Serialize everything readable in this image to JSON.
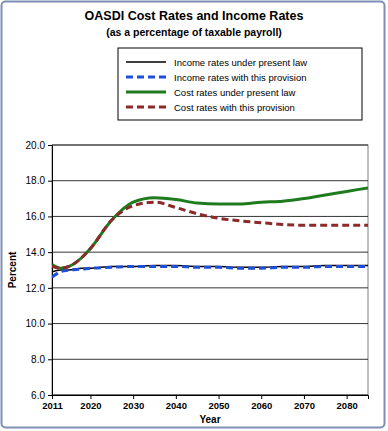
{
  "chart_data": {
    "type": "line",
    "title": "OASDI Cost Rates and Income Rates",
    "subtitle": "(as a percentage of taxable payroll)",
    "x_label": "Year",
    "y_label": "Percent",
    "x": [
      2011,
      2013,
      2015,
      2018,
      2020,
      2025,
      2030,
      2035,
      2040,
      2045,
      2050,
      2055,
      2060,
      2065,
      2070,
      2075,
      2080,
      2085
    ],
    "xlim": [
      2011,
      2085
    ],
    "xticks": [
      2011,
      2020,
      2030,
      2040,
      2050,
      2060,
      2070,
      2080
    ],
    "ylim": [
      6,
      20
    ],
    "yticks": [
      {
        "value": 6,
        "label": "6.0"
      },
      {
        "value": 8,
        "label": "8.0"
      },
      {
        "value": 10,
        "label": "10.0"
      },
      {
        "value": 12,
        "label": "12.0"
      },
      {
        "value": 14,
        "label": "14.0"
      },
      {
        "value": 16,
        "label": "16.0"
      },
      {
        "value": 18,
        "label": "18.0"
      },
      {
        "value": 20,
        "label": "20.0"
      }
    ],
    "grid": true,
    "legend": "top",
    "series": [
      {
        "name": "Income rates under present law",
        "color": "#000000",
        "line_style": "solid",
        "values": [
          12.9,
          13.0,
          13.0,
          13.1,
          13.1,
          13.2,
          13.2,
          13.25,
          13.25,
          13.2,
          13.2,
          13.15,
          13.15,
          13.2,
          13.2,
          13.25,
          13.25,
          13.25
        ]
      },
      {
        "name": "Income rates with this provision",
        "color": "#1f4fd8",
        "line_style": "dashed",
        "values": [
          12.6,
          12.9,
          13.0,
          13.05,
          13.1,
          13.15,
          13.2,
          13.2,
          13.2,
          13.15,
          13.15,
          13.1,
          13.1,
          13.15,
          13.15,
          13.2,
          13.2,
          13.2
        ]
      },
      {
        "name": "Cost rates under present law",
        "color": "#1e7b1e",
        "line_style": "solid",
        "values": [
          13.3,
          13.1,
          13.2,
          13.7,
          14.2,
          15.8,
          16.8,
          17.05,
          16.95,
          16.75,
          16.7,
          16.7,
          16.8,
          16.85,
          17.0,
          17.2,
          17.4,
          17.6
        ]
      },
      {
        "name": "Cost rates with this provision",
        "color": "#8b2a2a",
        "line_style": "dashed",
        "values": [
          13.2,
          13.1,
          13.2,
          13.7,
          14.2,
          15.8,
          16.6,
          16.8,
          16.5,
          16.15,
          15.9,
          15.75,
          15.65,
          15.55,
          15.5,
          15.5,
          15.5,
          15.5
        ]
      }
    ]
  }
}
